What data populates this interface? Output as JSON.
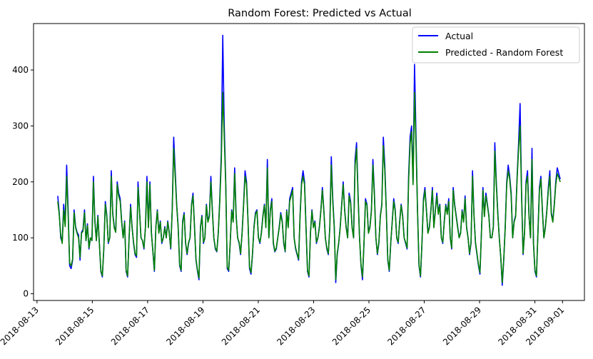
{
  "chart_data": {
    "type": "line",
    "title": "Random Forest: Predicted vs Actual",
    "xlabel": "",
    "ylabel": "",
    "x_start": "2018-08-13T18:00",
    "x_end": "2018-08-31T22:00",
    "xlim": [
      "2018-08-12T21:00",
      "2018-09-01T19:00"
    ],
    "ylim": [
      -12,
      483
    ],
    "x_ticks": [
      "2018-08-13",
      "2018-08-15",
      "2018-08-17",
      "2018-08-19",
      "2018-08-21",
      "2018-08-23",
      "2018-08-25",
      "2018-08-27",
      "2018-08-29",
      "2018-08-31",
      "2018-09-01"
    ],
    "y_ticks": [
      0,
      100,
      200,
      300,
      400
    ],
    "grid": false,
    "legend_position": "top-right",
    "series": [
      {
        "name": "Actual",
        "color": "#0000ff",
        "values": [
          175,
          145,
          100,
          92,
          160,
          125,
          230,
          150,
          50,
          45,
          60,
          150,
          120,
          110,
          105,
          60,
          110,
          115,
          150,
          95,
          125,
          80,
          100,
          95,
          210,
          130,
          95,
          140,
          90,
          40,
          30,
          80,
          165,
          140,
          90,
          100,
          220,
          145,
          120,
          110,
          200,
          180,
          170,
          130,
          100,
          130,
          40,
          30,
          100,
          160,
          120,
          90,
          70,
          65,
          200,
          150,
          100,
          95,
          80,
          120,
          210,
          120,
          200,
          110,
          75,
          40,
          120,
          150,
          110,
          130,
          90,
          100,
          120,
          100,
          130,
          110,
          80,
          150,
          280,
          220,
          160,
          120,
          50,
          40,
          130,
          145,
          90,
          70,
          90,
          100,
          160,
          180,
          120,
          60,
          40,
          25,
          120,
          140,
          90,
          100,
          160,
          130,
          140,
          210,
          150,
          100,
          80,
          75,
          110,
          170,
          250,
          462,
          300,
          200,
          45,
          40,
          90,
          150,
          130,
          225,
          140,
          100,
          90,
          70,
          110,
          160,
          220,
          200,
          130,
          45,
          35,
          70,
          120,
          145,
          150,
          100,
          90,
          110,
          140,
          160,
          120,
          240,
          100,
          150,
          170,
          90,
          75,
          80,
          100,
          120,
          145,
          130,
          90,
          75,
          150,
          120,
          170,
          180,
          190,
          100,
          80,
          70,
          60,
          140,
          200,
          220,
          200,
          120,
          40,
          30,
          110,
          150,
          120,
          130,
          90,
          100,
          120,
          150,
          190,
          150,
          100,
          80,
          70,
          120,
          245,
          170,
          120,
          20,
          70,
          90,
          120,
          160,
          200,
          150,
          120,
          100,
          180,
          165,
          120,
          100,
          240,
          270,
          180,
          100,
          50,
          25,
          90,
          170,
          160,
          110,
          120,
          150,
          240,
          180,
          100,
          70,
          90,
          140,
          160,
          280,
          230,
          150,
          60,
          40,
          90,
          130,
          170,
          150,
          100,
          90,
          130,
          160,
          140,
          100,
          90,
          80,
          210,
          280,
          300,
          200,
          410,
          280,
          150,
          50,
          30,
          90,
          170,
          190,
          150,
          110,
          120,
          150,
          190,
          120,
          150,
          180,
          145,
          160,
          100,
          90,
          130,
          160,
          145,
          170,
          100,
          80,
          190,
          160,
          140,
          120,
          100,
          110,
          150,
          130,
          175,
          120,
          100,
          70,
          90,
          220,
          140,
          90,
          70,
          50,
          35,
          110,
          190,
          140,
          180,
          160,
          140,
          100,
          100,
          120,
          270,
          200,
          145,
          100,
          65,
          15,
          60,
          120,
          200,
          230,
          210,
          180,
          100,
          130,
          140,
          210,
          270,
          340,
          180,
          70,
          110,
          200,
          220,
          140,
          100,
          260,
          90,
          40,
          30,
          110,
          190,
          210,
          150,
          100,
          120,
          150,
          190,
          220,
          145,
          130,
          160,
          200,
          225,
          215,
          205
        ]
      },
      {
        "name": "Predicted - Random Forest",
        "color": "#008000",
        "values": [
          165,
          142,
          105,
          90,
          150,
          120,
          210,
          140,
          55,
          50,
          62,
          145,
          118,
          108,
          100,
          65,
          108,
          112,
          145,
          95,
          122,
          82,
          100,
          95,
          200,
          128,
          95,
          138,
          90,
          42,
          32,
          82,
          160,
          138,
          92,
          100,
          210,
          142,
          118,
          110,
          195,
          175,
          165,
          128,
          100,
          128,
          42,
          32,
          100,
          155,
          118,
          92,
          72,
          68,
          190,
          148,
          100,
          95,
          82,
          118,
          200,
          118,
          195,
          108,
          76,
          42,
          118,
          148,
          108,
          128,
          92,
          100,
          118,
          100,
          128,
          108,
          82,
          148,
          260,
          210,
          158,
          118,
          52,
          42,
          128,
          142,
          92,
          72,
          92,
          100,
          158,
          175,
          118,
          62,
          42,
          28,
          118,
          138,
          92,
          100,
          158,
          128,
          138,
          200,
          148,
          100,
          82,
          76,
          108,
          165,
          235,
          360,
          280,
          195,
          48,
          42,
          92,
          148,
          128,
          215,
          138,
          100,
          92,
          72,
          108,
          158,
          210,
          195,
          128,
          48,
          38,
          72,
          118,
          142,
          148,
          100,
          92,
          108,
          138,
          158,
          118,
          225,
          100,
          148,
          165,
          92,
          76,
          82,
          100,
          118,
          142,
          128,
          92,
          76,
          148,
          118,
          165,
          175,
          185,
          100,
          82,
          72,
          62,
          138,
          195,
          210,
          195,
          118,
          42,
          32,
          108,
          148,
          118,
          128,
          92,
          100,
          118,
          148,
          185,
          148,
          100,
          82,
          72,
          118,
          230,
          165,
          118,
          25,
          72,
          92,
          118,
          158,
          195,
          148,
          118,
          100,
          175,
          162,
          118,
          100,
          228,
          260,
          175,
          100,
          52,
          30,
          92,
          165,
          158,
          108,
          118,
          148,
          230,
          175,
          100,
          72,
          92,
          138,
          158,
          265,
          220,
          148,
          62,
          42,
          92,
          128,
          165,
          148,
          100,
          92,
          128,
          158,
          138,
          100,
          92,
          82,
          200,
          268,
          290,
          195,
          360,
          265,
          148,
          52,
          32,
          92,
          165,
          185,
          148,
          108,
          118,
          148,
          185,
          118,
          148,
          175,
          142,
          158,
          100,
          92,
          128,
          158,
          142,
          165,
          100,
          82,
          185,
          158,
          138,
          118,
          100,
          108,
          148,
          128,
          170,
          118,
          100,
          72,
          92,
          210,
          138,
          92,
          72,
          52,
          38,
          108,
          185,
          138,
          175,
          158,
          138,
          100,
          100,
          118,
          255,
          195,
          142,
          100,
          66,
          20,
          62,
          118,
          195,
          220,
          205,
          175,
          100,
          128,
          138,
          205,
          260,
          300,
          175,
          72,
          108,
          195,
          210,
          138,
          100,
          240,
          92,
          42,
          32,
          108,
          185,
          205,
          148,
          100,
          118,
          148,
          185,
          210,
          142,
          128,
          158,
          195,
          215,
          208,
          200
        ]
      }
    ]
  }
}
